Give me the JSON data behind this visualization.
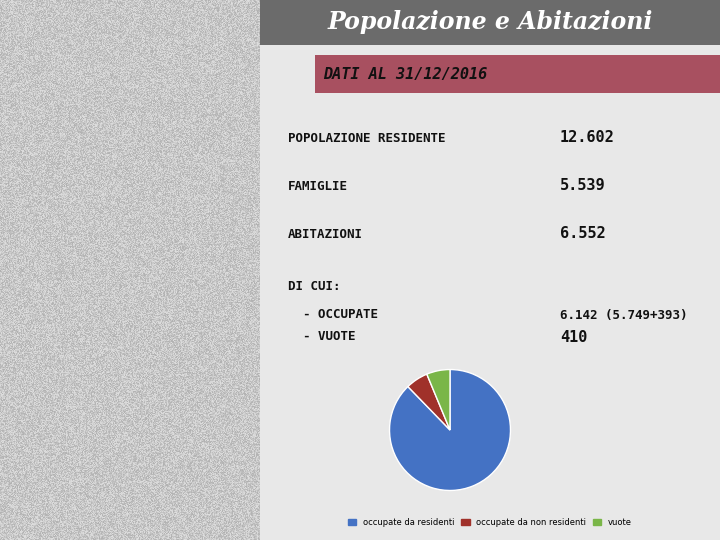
{
  "title": "Popolazione e Abitazioni",
  "title_bg": "#6b6b6b",
  "title_color": "#ffffff",
  "subtitle": "DATI AL 31/12/2016",
  "subtitle_bg": "#a85060",
  "subtitle_color": "#111111",
  "panel_bg": "#cccccc",
  "left_bg": "#b0b0b0",
  "white_gap_bg": "#e8e8e8",
  "rows": [
    {
      "label": "POPOLAZIONE RESIDENTE",
      "value": "12.602"
    },
    {
      "label": "FAMIGLIE",
      "value": "5.539"
    },
    {
      "label": "ABITAZIONI",
      "value": "6.552"
    }
  ],
  "di_cui_label": "DI CUI:",
  "occupate_label": "  - OCCUPATE",
  "vuote_label": "  - VUOTE",
  "occupate_value": "6.142 (5.749+393)",
  "vuote_value": "410",
  "pie_values": [
    5749,
    393,
    410
  ],
  "pie_colors": [
    "#4472c4",
    "#a0312a",
    "#7ab648"
  ],
  "legend_labels": [
    "occupate da residenti",
    "occupate da non residenti",
    "vuote"
  ],
  "figsize": [
    7.2,
    5.4
  ],
  "dpi": 100
}
